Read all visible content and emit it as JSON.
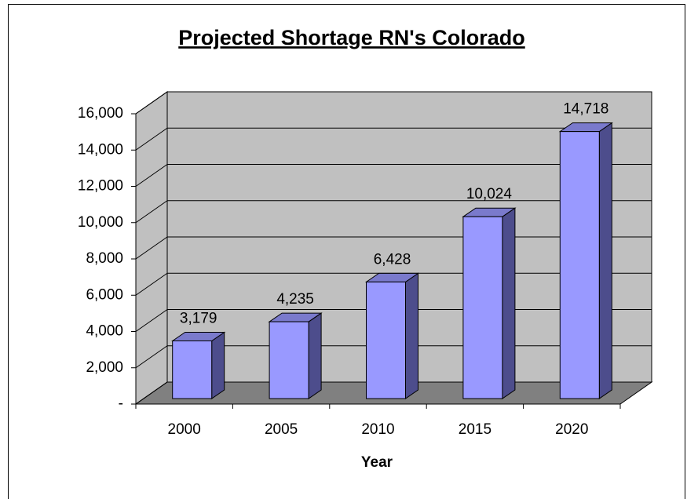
{
  "chart_data": {
    "type": "bar3d",
    "title": "Projected Shortage RN's Colorado",
    "categories": [
      "2000",
      "2005",
      "2010",
      "2015",
      "2020"
    ],
    "values": [
      3179,
      4235,
      6428,
      10024,
      14718
    ],
    "value_labels": [
      "3,179",
      "4,235",
      "6,428",
      "10,024",
      "14,718"
    ],
    "color": "#9999ff",
    "x_label": "Year",
    "ylim": [
      0,
      16000
    ],
    "yticks": [
      {
        "value": 0,
        "label": "-"
      },
      {
        "value": 2000,
        "label": "2,000"
      },
      {
        "value": 4000,
        "label": "4,000"
      },
      {
        "value": 6000,
        "label": "6,000"
      },
      {
        "value": 8000,
        "label": "8,000"
      },
      {
        "value": 10000,
        "label": "10,000"
      },
      {
        "value": 12000,
        "label": "12,000"
      },
      {
        "value": 14000,
        "label": "14,000"
      },
      {
        "value": 16000,
        "label": "16,000"
      }
    ],
    "grid": true
  }
}
